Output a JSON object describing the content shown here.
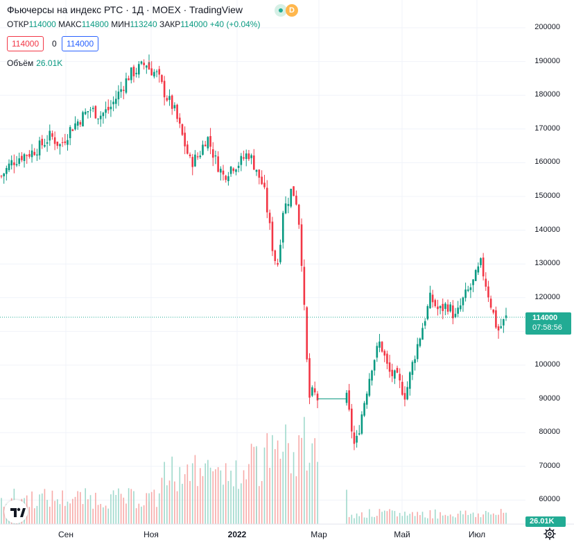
{
  "header": {
    "title": "Фьючерсы на индекс РТС · 1Д · MOEX · TradingView",
    "badge_letter": "D"
  },
  "ohlc": {
    "open_label": "ОТКР",
    "open": "114000",
    "high_label": "МАКС",
    "high": "114800",
    "low_label": "МИН",
    "low": "113240",
    "close_label": "ЗАКР",
    "close": "114000",
    "change": "+40 (+0.04%)"
  },
  "order_boxes": {
    "sell": "114000",
    "spread": "0",
    "buy": "114000"
  },
  "volume": {
    "label": "Объём",
    "value": "26.01K"
  },
  "price_scale": {
    "ticks": [
      "200000",
      "190000",
      "180000",
      "170000",
      "160000",
      "150000",
      "140000",
      "130000",
      "120000",
      "110000",
      "100000",
      "90000",
      "80000",
      "70000",
      "60000"
    ],
    "last_price": "114000",
    "countdown": "07:58:56",
    "volume_tag": "26.01K"
  },
  "time_axis": {
    "labels": [
      "Сен",
      "Ноя",
      "2022",
      "Мар",
      "Май",
      "Июл"
    ]
  },
  "colors": {
    "up": "#089981",
    "down": "#f23645",
    "grid": "#f0f3fa",
    "price_line": "#22ab94"
  },
  "icons": {
    "logo": "tradingview-logo-icon",
    "settings": "gear-icon"
  },
  "chart_data": {
    "type": "candlestick",
    "symbol": "RTS index futures",
    "interval": "1D",
    "ylim": [
      55000,
      203000
    ],
    "last_close": 114000,
    "closes": [
      [
        156000,
        160000,
        162000,
        163000,
        165000,
        168000,
        165000,
        170000,
        173000,
        176000,
        174000,
        176000,
        181000,
        186000,
        188000,
        190000
      ],
      [
        188000,
        186000,
        180000,
        176000,
        168000,
        160000,
        162000,
        168000,
        161000,
        156000,
        159000,
        160000,
        163000,
        158000
      ],
      [
        157000,
        155000,
        150000,
        141000,
        132000,
        130000,
        146000,
        148000,
        152000,
        150000,
        140000,
        115000,
        90000,
        92000,
        90000
      ],
      [
        90000,
        75000,
        88000,
        100000,
        107000,
        98000,
        96000,
        91000,
        102000,
        111000,
        120000,
        116000,
        118000,
        114000,
        120000,
        124000,
        130000,
        120000,
        110000,
        114000
      ]
    ],
    "volume_note": "daily volume histogram below candles, spike around Feb–Mar 2022"
  }
}
